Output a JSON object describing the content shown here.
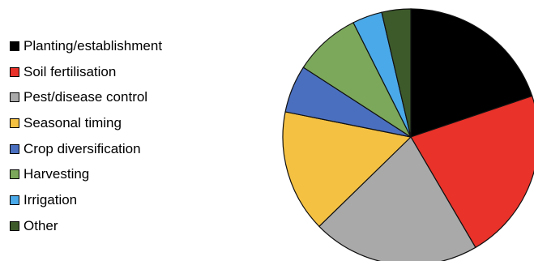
{
  "chart_data": {
    "type": "pie",
    "title": "",
    "legend_position": "left",
    "start_angle": "12 o'clock, clockwise",
    "categories": [
      "Planting/establishment",
      "Soil fertilisation",
      "Pest/disease control",
      "Seasonal timing",
      "Crop diversification",
      "Harvesting",
      "Irrigation",
      "Other"
    ],
    "values": [
      19.5,
      21.4,
      20.8,
      15.2,
      5.9,
      8.3,
      3.7,
      3.6
    ],
    "colors": [
      "#000000",
      "#e8322a",
      "#a9a9a9",
      "#f5c142",
      "#4a6fbf",
      "#7ba85a",
      "#4aa9e8",
      "#3d5a2b"
    ]
  }
}
